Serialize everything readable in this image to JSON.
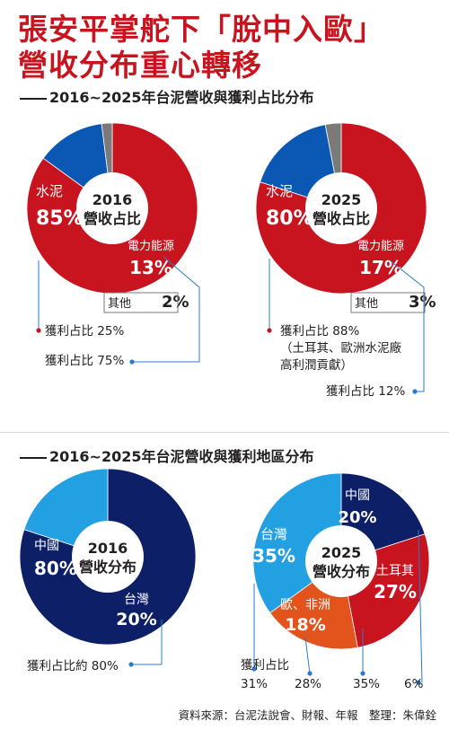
{
  "headline": {
    "line1": "張安平掌舵下「脫中入歐」",
    "line2": "營收分布重心轉移"
  },
  "section1_title": "2016~2025年台泥營收與獲利占比分布",
  "section2_title": "2016~2025年台泥營收與獲利地區分布",
  "source": "資料來源：台泥法說會、財報、年報　整理：朱偉銓",
  "colors": {
    "red": "#c8141e",
    "blue": "#0a58b4",
    "gray": "#7a7a7a",
    "navy": "#0d1f66",
    "sky": "#22a0e2",
    "orange": "#e2541c"
  },
  "chart_data": [
    {
      "type": "pie",
      "title": "2016\n營收占比",
      "slices": [
        {
          "label": "水泥",
          "value": 85,
          "display": "85%",
          "color": "#c8141e"
        },
        {
          "label": "電力能源",
          "value": 13,
          "display": "13%",
          "color": "#0a58b4"
        },
        {
          "label": "其他",
          "value": 2,
          "display": "2%",
          "color": "#7a7a7a"
        }
      ],
      "annotations": [
        {
          "text": "獲利占比 25%",
          "target": "水泥"
        },
        {
          "text": "獲利占比 75%",
          "target": "電力能源"
        }
      ]
    },
    {
      "type": "pie",
      "title": "2025\n營收占比",
      "slices": [
        {
          "label": "水泥",
          "value": 80,
          "display": "80%",
          "color": "#c8141e"
        },
        {
          "label": "電力能源",
          "value": 17,
          "display": "17%",
          "color": "#0a58b4"
        },
        {
          "label": "其他",
          "value": 3,
          "display": "3%",
          "color": "#7a7a7a"
        }
      ],
      "annotations": [
        {
          "text": "獲利占比 88%\n（土耳其、歐洲水泥廠\n高利潤貢獻）",
          "target": "水泥"
        },
        {
          "text": "獲利占比 12%",
          "target": "電力能源"
        }
      ]
    },
    {
      "type": "pie",
      "title": "2016\n營收分布",
      "slices": [
        {
          "label": "中國",
          "value": 80,
          "display": "80%",
          "color": "#0d1f66"
        },
        {
          "label": "台灣",
          "value": 20,
          "display": "20%",
          "color": "#22a0e2"
        }
      ],
      "annotations": [
        {
          "text": "獲利占比約 80%",
          "target": "台灣"
        }
      ]
    },
    {
      "type": "pie",
      "title": "2025\n營收分布",
      "slices": [
        {
          "label": "中國",
          "value": 20,
          "display": "20%",
          "color": "#0d1f66"
        },
        {
          "label": "土耳其",
          "value": 27,
          "display": "27%",
          "color": "#c8141e"
        },
        {
          "label": "歐、非洲",
          "value": 18,
          "display": "18%",
          "color": "#e2541c"
        },
        {
          "label": "台灣",
          "value": 35,
          "display": "35%",
          "color": "#22a0e2"
        }
      ],
      "annotations": [
        {
          "text": "獲利占比",
          "target": ""
        },
        {
          "text": "31%",
          "target": "台灣"
        },
        {
          "text": "28%",
          "target": "歐、非洲"
        },
        {
          "text": "35%",
          "target": "土耳其"
        },
        {
          "text": "6%",
          "target": "中國"
        }
      ]
    }
  ]
}
